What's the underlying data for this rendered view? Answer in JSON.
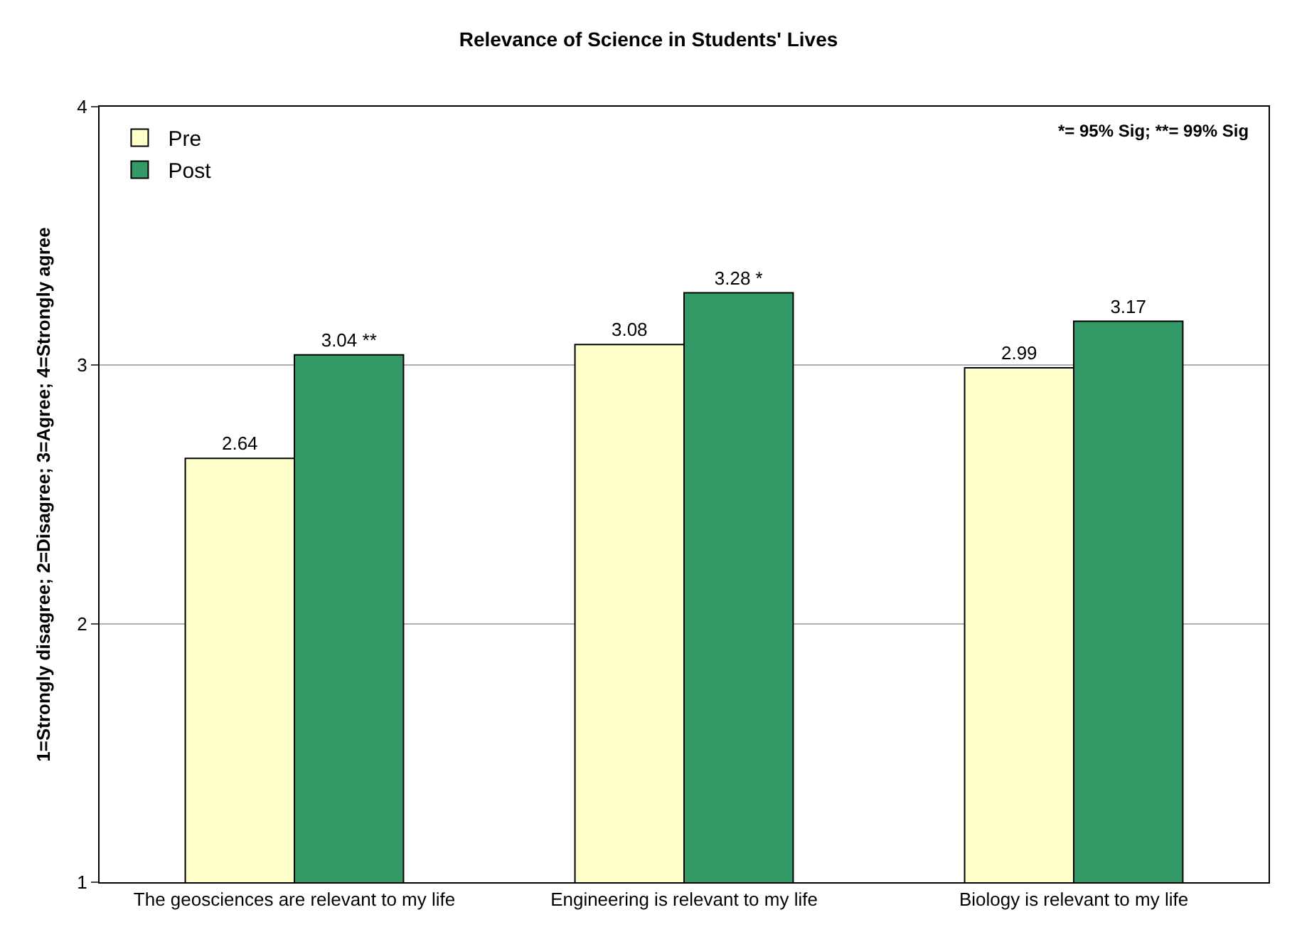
{
  "chart_data": {
    "type": "bar",
    "title": "Relevance of Science in Students' Lives",
    "ylabel": "1=Strongly disagree; 2=Disagree; 3=Agree; 4=Strongly agree",
    "categories": [
      "The geosciences are relevant to my life",
      "Engineering is relevant to my life",
      "Biology is relevant to my life"
    ],
    "series": [
      {
        "name": "Pre",
        "color": "#ffffcc",
        "values": [
          2.64,
          3.08,
          2.99
        ],
        "value_labels": [
          "2.64",
          "3.08",
          "2.99"
        ]
      },
      {
        "name": "Post",
        "color": "#339966",
        "values": [
          3.04,
          3.28,
          3.17
        ],
        "value_labels": [
          "3.04 **",
          "3.28 *",
          "3.17"
        ]
      }
    ],
    "ylim": [
      1,
      4
    ],
    "yticks": [
      1,
      2,
      3,
      4
    ],
    "grid": "y",
    "legend": "top left",
    "annotations": [
      "*= 95% Sig; **= 99% Sig"
    ]
  }
}
